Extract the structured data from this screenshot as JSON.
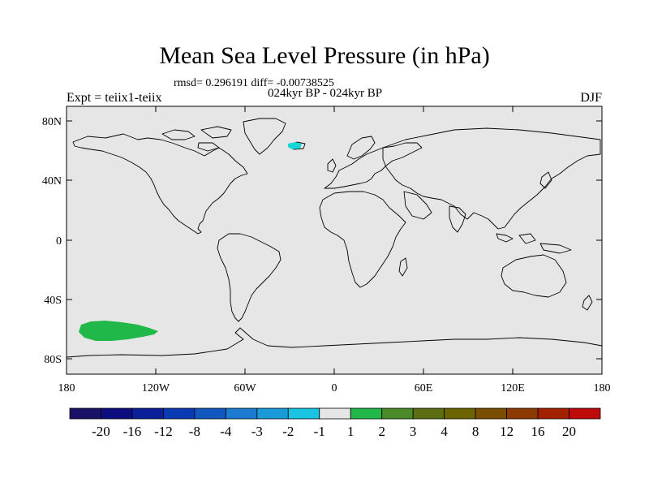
{
  "header": {
    "title": "Mean Sea Level Pressure (in hPa)",
    "stats": "rmsd= 0.296191 diff= -0.00738525",
    "period": "024kyr BP - 024kyr BP",
    "experiment": "Expt = teiix1-teiix",
    "season": "DJF"
  },
  "map": {
    "projection": "cylindrical-equidistant",
    "background_color": "#e6e6e6",
    "coastline_color": "#000000",
    "lat_labels": [
      "80N",
      "40N",
      "0",
      "40S",
      "80S"
    ],
    "lon_labels": [
      "180",
      "120W",
      "60W",
      "0",
      "60E",
      "120E",
      "180"
    ],
    "anomaly_regions": [
      {
        "name": "south-pacific-positive-anomaly",
        "color": "#21b84a",
        "bin": "1 to 2"
      },
      {
        "name": "iceland-negative-anomaly",
        "color": "#17d6d6",
        "bin": "-2 to -1"
      }
    ]
  },
  "colorbar": {
    "colors": [
      "#1a1266",
      "#0d0d80",
      "#0a1f99",
      "#0a3ab3",
      "#1057bf",
      "#1c7ad1",
      "#1a9bd9",
      "#19c4e3",
      "#e6e6e6",
      "#21b84a",
      "#4a8a28",
      "#5b6e12",
      "#6b6400",
      "#7a4e00",
      "#8c3a00",
      "#a32000",
      "#bf0a0a"
    ],
    "labels": [
      "-20",
      "-16",
      "-12",
      "-8",
      "-4",
      "-3",
      "-2",
      "-1",
      "1",
      "2",
      "3",
      "4",
      "8",
      "12",
      "16",
      "20"
    ]
  }
}
